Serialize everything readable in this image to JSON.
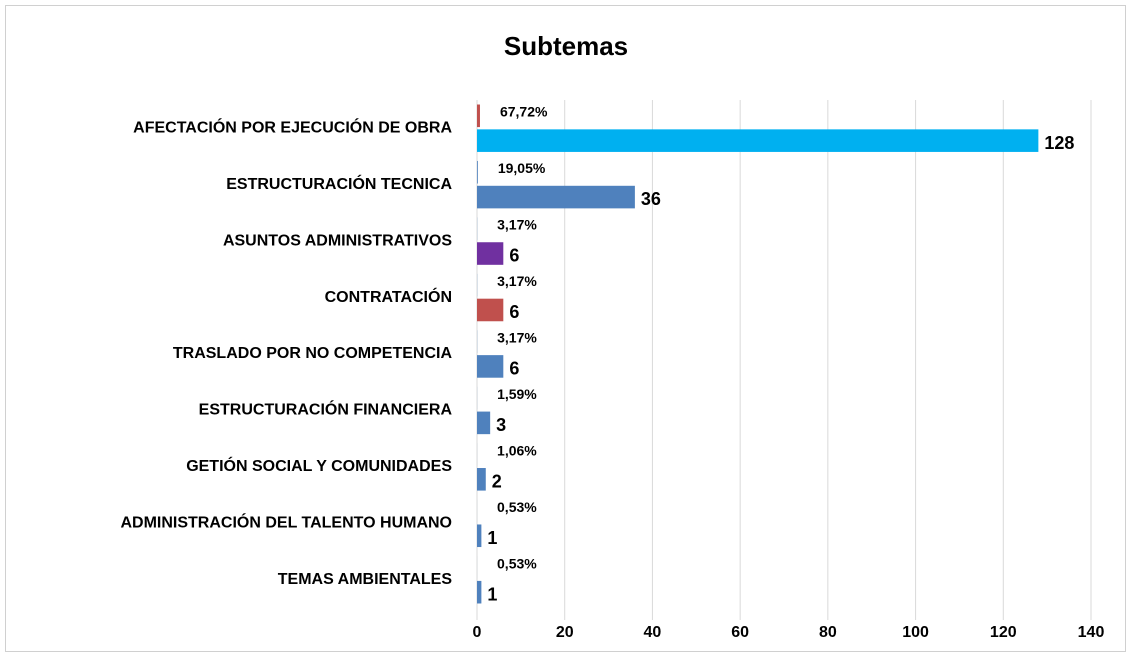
{
  "chart_data": {
    "type": "bar",
    "orientation": "horizontal",
    "title": "Subtemas",
    "categories": [
      "AFECTACIÓN POR EJECUCIÓN DE OBRA",
      "ESTRUCTURACIÓN TECNICA",
      "ASUNTOS ADMINISTRATIVOS",
      "CONTRATACIÓN",
      "TRASLADO POR NO COMPETENCIA",
      "ESTRUCTURACIÓN FINANCIERA",
      "GETIÓN SOCIAL Y COMUNIDADES",
      "ADMINISTRACIÓN DEL TALENTO HUMANO",
      "TEMAS AMBIENTALES"
    ],
    "series": [
      {
        "color": "#4f81bd",
        "colors": [
          "#c0504d",
          "#4f81bd",
          "#4f81bd",
          "#4f81bd",
          "#4f81bd",
          "#4f81bd",
          "#4f81bd",
          "#4f81bd",
          "#4f81bd"
        ],
        "values": [
          0.6772,
          0.1905,
          0.0317,
          0.0317,
          0.0317,
          0.0159,
          0.0106,
          0.0053,
          0.0053
        ],
        "value_labels": [
          "67,72%",
          "19,05%",
          "3,17%",
          "3,17%",
          "3,17%",
          "1,59%",
          "1,06%",
          "0,53%",
          "0,53%"
        ]
      },
      {
        "color": "#4f81bd",
        "colors": [
          "#00b0f0",
          "#4f81bd",
          "#7030a0",
          "#c0504d",
          "#4f81bd",
          "#4f81bd",
          "#4f81bd",
          "#4f81bd",
          "#4f81bd"
        ],
        "values": [
          128,
          36,
          6,
          6,
          6,
          3,
          2,
          1,
          1
        ]
      }
    ],
    "xlim": [
      0,
      140
    ],
    "xticks": [
      0,
      20,
      40,
      60,
      80,
      100,
      120,
      140
    ],
    "grid": true
  }
}
